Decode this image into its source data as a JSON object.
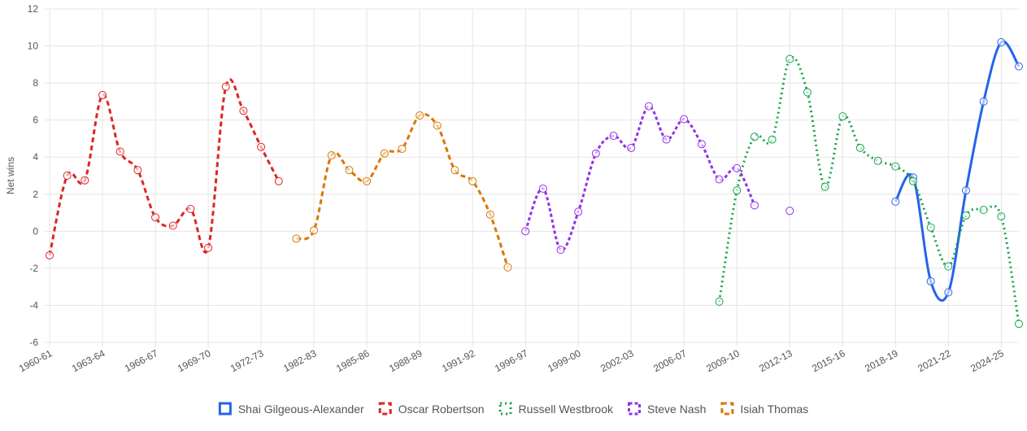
{
  "chart_data": {
    "type": "line",
    "ylabel": "Net wins",
    "categories": [
      "1960-61",
      null,
      null,
      "1963-64",
      null,
      null,
      "1966-67",
      null,
      null,
      "1969-70",
      null,
      null,
      "1972-73",
      null,
      null,
      "1982-83",
      null,
      null,
      "1985-86",
      null,
      null,
      "1988-89",
      null,
      null,
      "1991-92",
      null,
      null,
      "1996-97",
      null,
      null,
      "1999-00",
      null,
      null,
      "2002-03",
      null,
      null,
      "2006-07",
      null,
      null,
      "2009-10",
      null,
      null,
      "2012-13",
      null,
      null,
      "2015-16",
      null,
      null,
      "2018-19",
      null,
      null,
      "2021-22",
      null,
      null,
      "2024-25",
      null
    ],
    "ylim": [
      -6,
      12
    ],
    "yticks": [
      -6,
      -4,
      -2,
      0,
      2,
      4,
      6,
      8,
      10,
      12
    ],
    "grid": true,
    "legend": "bottom",
    "series": [
      {
        "name": "Shai Gilgeous-Alexander",
        "color": "#2563eb",
        "style": "solid",
        "values": [
          null,
          null,
          null,
          null,
          null,
          null,
          null,
          null,
          null,
          null,
          null,
          null,
          null,
          null,
          null,
          null,
          null,
          null,
          null,
          null,
          null,
          null,
          null,
          null,
          null,
          null,
          null,
          null,
          null,
          null,
          null,
          null,
          null,
          null,
          null,
          null,
          null,
          null,
          null,
          null,
          null,
          null,
          null,
          null,
          null,
          null,
          null,
          null,
          1.6,
          2.9,
          -2.7,
          -3.3,
          2.2,
          7.0,
          10.2,
          8.9
        ]
      },
      {
        "name": "Oscar Robertson",
        "color": "#dc2626",
        "style": "dashed",
        "values": [
          -1.3,
          3.0,
          2.75,
          7.35,
          4.3,
          3.3,
          0.75,
          0.3,
          1.2,
          -0.9,
          7.8,
          6.5,
          4.55,
          2.7,
          null,
          null,
          null,
          null,
          null,
          null,
          null,
          null,
          null,
          null,
          null,
          null,
          null,
          null,
          null,
          null,
          null,
          null,
          null,
          null,
          null,
          null,
          null,
          null,
          null,
          null,
          null,
          null,
          null,
          null,
          null,
          null,
          null,
          null,
          null,
          null,
          null,
          null,
          null,
          null,
          null,
          null
        ]
      },
      {
        "name": "Russell Westbrook",
        "color": "#16a34a",
        "style": "dotted",
        "values": [
          null,
          null,
          null,
          null,
          null,
          null,
          null,
          null,
          null,
          null,
          null,
          null,
          null,
          null,
          null,
          null,
          null,
          null,
          null,
          null,
          null,
          null,
          null,
          null,
          null,
          null,
          null,
          null,
          null,
          null,
          null,
          null,
          null,
          null,
          null,
          null,
          null,
          null,
          -3.8,
          2.2,
          5.1,
          4.95,
          9.3,
          7.5,
          2.4,
          6.2,
          4.5,
          3.8,
          3.5,
          2.7,
          0.2,
          -1.9,
          0.85,
          1.15,
          0.8,
          -5.0
        ]
      },
      {
        "name": "Steve Nash",
        "color": "#9333ea",
        "style": "short-dash",
        "values": [
          null,
          null,
          null,
          null,
          null,
          null,
          null,
          null,
          null,
          null,
          null,
          null,
          null,
          null,
          null,
          null,
          null,
          null,
          null,
          null,
          null,
          null,
          null,
          null,
          null,
          null,
          null,
          0.0,
          2.3,
          -1.0,
          1.05,
          4.2,
          5.15,
          4.5,
          6.75,
          4.95,
          6.05,
          4.7,
          2.8,
          3.4,
          1.4,
          null,
          1.1,
          null,
          null,
          null,
          null,
          null,
          null,
          null,
          null,
          null,
          null,
          null,
          null,
          null
        ]
      },
      {
        "name": "Isiah Thomas",
        "color": "#d97706",
        "style": "dashed",
        "values": [
          null,
          null,
          null,
          null,
          null,
          null,
          null,
          null,
          null,
          null,
          null,
          null,
          null,
          null,
          -0.4,
          0.05,
          4.1,
          3.3,
          2.7,
          4.2,
          4.45,
          6.25,
          5.7,
          3.3,
          2.7,
          0.9,
          -1.95,
          null,
          null,
          null,
          null,
          null,
          null,
          null,
          null,
          null,
          null,
          null,
          null,
          null,
          null,
          null,
          null,
          null,
          null,
          null,
          null,
          null,
          null,
          null,
          null,
          null,
          null,
          null,
          null,
          null
        ]
      }
    ]
  }
}
